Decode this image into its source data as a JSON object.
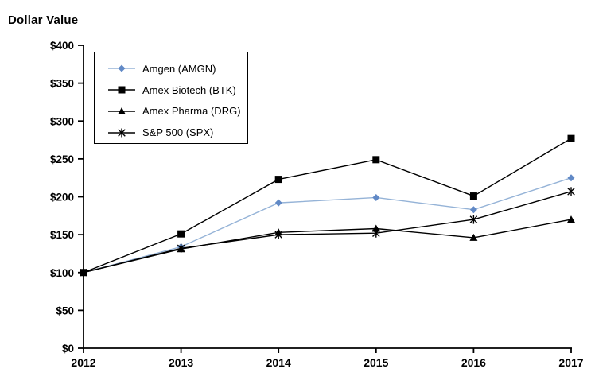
{
  "page": {
    "background": "#ffffff"
  },
  "chart_data": {
    "type": "line",
    "title": "Dollar Value",
    "xlabel": "",
    "ylabel": "Dollar Value",
    "categories": [
      "2012",
      "2013",
      "2014",
      "2015",
      "2016",
      "2017"
    ],
    "y_ticks": [
      "$0",
      "$50",
      "$100",
      "$150",
      "$200",
      "$250",
      "$300",
      "$350",
      "$400"
    ],
    "ylim": [
      0,
      400
    ],
    "y_tick_step": 50,
    "grid": false,
    "legend_position": "inside-top-left",
    "axis_color": "#000000",
    "series": [
      {
        "name": "Amgen (AMGN)",
        "values": [
          100,
          134,
          192,
          199,
          183,
          225
        ],
        "line_color": "#95B3D7",
        "marker_color": "#6189C6",
        "marker": "diamond"
      },
      {
        "name": "Amex Biotech (BTK)",
        "values": [
          100,
          151,
          223,
          249,
          201,
          277
        ],
        "line_color": "#000000",
        "marker_color": "#000000",
        "marker": "square"
      },
      {
        "name": "Amex Pharma (DRG)",
        "values": [
          100,
          131,
          153,
          158,
          146,
          170
        ],
        "line_color": "#000000",
        "marker_color": "#000000",
        "marker": "triangle"
      },
      {
        "name": "S&P 500 (SPX)",
        "values": [
          100,
          132,
          150,
          152,
          170,
          207
        ],
        "line_color": "#000000",
        "marker_color": "#000000",
        "marker": "asterisk"
      }
    ]
  }
}
